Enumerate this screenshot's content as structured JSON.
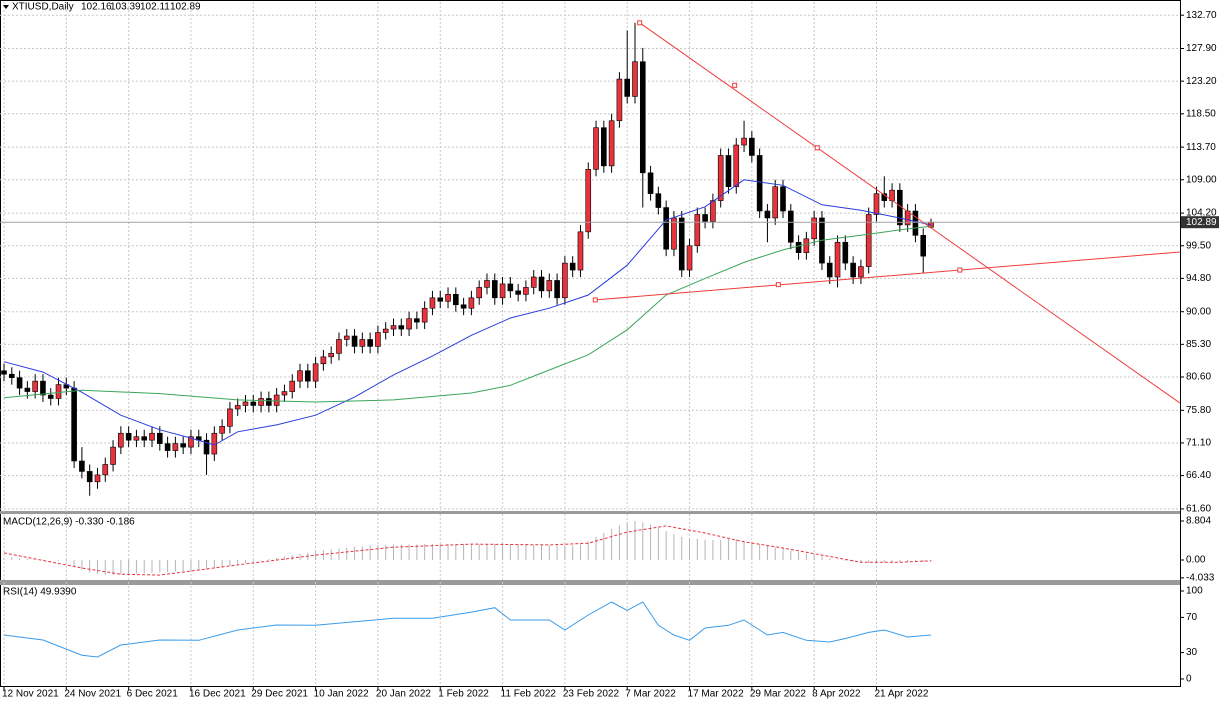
{
  "chart_data": [
    {
      "type": "candlestick",
      "title": "XTIUSD,Daily",
      "categories": [
        "12 Nov 2021",
        null,
        null,
        null,
        null,
        null,
        null,
        null,
        "24 Nov 2021",
        null,
        null,
        null,
        null,
        null,
        null,
        null,
        "6 Dec 2021",
        null,
        null,
        null,
        null,
        null,
        null,
        null,
        "16 Dec 2021",
        null,
        null,
        null,
        null,
        null,
        null,
        null,
        "29 Dec 2021",
        null,
        null,
        null,
        null,
        null,
        null,
        null,
        "10 Jan 2022",
        null,
        null,
        null,
        null,
        null,
        null,
        null,
        "20 Jan 2022",
        null,
        null,
        null,
        null,
        null,
        null,
        null,
        "1 Feb 2022",
        null,
        null,
        null,
        null,
        null,
        null,
        null,
        "11 Feb 2022",
        null,
        null,
        null,
        null,
        null,
        null,
        null,
        "23 Feb 2022",
        null,
        null,
        null,
        null,
        null,
        null,
        null,
        "7 Mar 2022",
        null,
        null,
        null,
        null,
        null,
        null,
        null,
        "17 Mar 2022",
        null,
        null,
        null,
        null,
        null,
        null,
        null,
        "29 Mar 2022",
        null,
        null,
        null,
        null,
        null,
        null,
        null,
        "8 Apr 2022",
        null,
        null,
        null,
        null,
        null,
        null,
        null,
        "21 Apr 2022",
        null,
        null,
        null,
        null,
        null,
        null,
        null
      ],
      "open": [
        81.5,
        81.0,
        80.5,
        79.0,
        78.5,
        80.0,
        78.0,
        77.5,
        79.5,
        79.0,
        68.5,
        67.0,
        65.5,
        66.5,
        68.0,
        70.5,
        72.5,
        71.5,
        72.0,
        71.5,
        72.5,
        71.0,
        70.0,
        71.0,
        70.5,
        72.0,
        71.5,
        69.5,
        72.5,
        73.5,
        76.0,
        76.5,
        77.0,
        76.5,
        77.5,
        76.5,
        78.0,
        78.5,
        80.0,
        81.5,
        80.0,
        82.5,
        83.5,
        84.0,
        86.0,
        86.5,
        85.0,
        86.0,
        85.0,
        87.0,
        87.5,
        88.0,
        87.5,
        89.0,
        88.5,
        90.5,
        92.0,
        91.5,
        92.5,
        91.0,
        90.5,
        92.0,
        93.5,
        94.5,
        92.0,
        94.0,
        93.0,
        92.5,
        93.5,
        95.0,
        93.0,
        94.5,
        92.0,
        97.0,
        96.0,
        101.5,
        110.5,
        116.5,
        111.0,
        117.5,
        123.5,
        121.0,
        126.0,
        110.0,
        107.0,
        105.0,
        99.0,
        103.5,
        96.0,
        99.5,
        104.0,
        103.0,
        106.0,
        112.5,
        108.0,
        114.0,
        115.0,
        112.5,
        104.5,
        103.5,
        108.0,
        104.5,
        100.0,
        98.5,
        100.5,
        103.5,
        97.0,
        95.0,
        100.0,
        97.0,
        95.0,
        96.5,
        104.0,
        107.0,
        106.0,
        107.5,
        102.5,
        104.5,
        101.0,
        102.16
      ],
      "high": [
        82.5,
        82.0,
        81.5,
        80.0,
        81.0,
        81.0,
        79.0,
        80.5,
        80.5,
        80.0,
        70.5,
        68.0,
        67.5,
        69.0,
        71.5,
        73.5,
        73.5,
        73.0,
        73.0,
        73.5,
        73.5,
        72.0,
        72.0,
        72.0,
        73.0,
        73.0,
        72.5,
        73.5,
        74.5,
        77.0,
        77.5,
        78.0,
        78.0,
        78.5,
        78.5,
        79.0,
        79.5,
        81.0,
        82.5,
        82.5,
        83.5,
        84.5,
        85.0,
        87.0,
        87.5,
        87.5,
        87.0,
        87.0,
        88.0,
        88.5,
        89.0,
        89.0,
        90.0,
        90.0,
        91.5,
        93.0,
        93.0,
        93.5,
        93.5,
        92.0,
        93.0,
        94.5,
        95.5,
        95.5,
        95.0,
        95.0,
        94.0,
        94.5,
        96.0,
        96.0,
        95.5,
        95.5,
        98.0,
        98.0,
        102.5,
        111.5,
        117.5,
        117.5,
        118.5,
        124.5,
        130.5,
        131.6,
        128.0,
        111.0,
        108.0,
        106.0,
        104.5,
        104.5,
        100.5,
        105.0,
        105.0,
        107.0,
        113.5,
        113.5,
        115.0,
        117.5,
        116.0,
        113.5,
        105.5,
        109.0,
        109.0,
        105.5,
        101.0,
        101.5,
        104.5,
        104.5,
        98.0,
        101.0,
        101.0,
        98.0,
        97.5,
        105.0,
        108.0,
        109.5,
        108.5,
        108.5,
        105.5,
        105.5,
        102.0,
        103.39
      ],
      "low": [
        80.0,
        79.5,
        78.0,
        77.5,
        77.5,
        77.0,
        76.5,
        76.5,
        78.0,
        67.5,
        66.0,
        63.5,
        64.5,
        65.5,
        67.0,
        69.5,
        70.5,
        70.5,
        70.5,
        70.5,
        70.0,
        69.0,
        69.0,
        69.5,
        69.5,
        70.5,
        66.5,
        68.5,
        71.5,
        72.5,
        75.0,
        75.5,
        75.5,
        75.5,
        75.5,
        75.5,
        77.0,
        77.5,
        79.0,
        79.0,
        79.0,
        81.5,
        82.5,
        83.0,
        85.0,
        84.0,
        84.0,
        84.0,
        84.0,
        86.0,
        86.5,
        86.5,
        86.5,
        87.5,
        87.5,
        89.5,
        90.5,
        90.5,
        90.0,
        89.5,
        89.5,
        91.0,
        92.5,
        91.0,
        91.0,
        92.0,
        91.5,
        91.5,
        92.5,
        92.0,
        92.0,
        91.0,
        91.0,
        95.0,
        95.0,
        100.5,
        109.5,
        110.0,
        110.0,
        116.5,
        120.0,
        120.0,
        105.0,
        106.0,
        104.0,
        98.0,
        98.0,
        95.0,
        95.0,
        98.5,
        102.0,
        102.0,
        105.0,
        107.0,
        107.0,
        113.0,
        111.5,
        103.5,
        100.0,
        102.5,
        103.5,
        99.0,
        97.5,
        97.5,
        99.5,
        96.0,
        94.0,
        93.5,
        96.0,
        94.0,
        94.0,
        95.5,
        103.0,
        105.0,
        105.0,
        101.5,
        101.5,
        100.0,
        95.5,
        102.11
      ],
      "close": [
        81.0,
        80.5,
        79.0,
        78.5,
        80.0,
        78.0,
        77.5,
        79.5,
        79.0,
        68.5,
        67.0,
        65.5,
        66.5,
        68.0,
        70.5,
        72.5,
        71.5,
        72.0,
        71.5,
        72.5,
        71.0,
        70.0,
        71.0,
        70.5,
        72.0,
        71.5,
        69.5,
        72.5,
        73.5,
        76.0,
        76.5,
        77.0,
        76.5,
        77.5,
        76.5,
        78.0,
        78.5,
        80.0,
        81.5,
        80.0,
        82.5,
        83.5,
        84.0,
        86.0,
        86.5,
        85.0,
        86.0,
        85.0,
        87.0,
        87.5,
        88.0,
        87.5,
        89.0,
        88.5,
        90.5,
        92.0,
        91.5,
        92.5,
        91.0,
        90.5,
        92.0,
        93.5,
        94.5,
        92.0,
        94.0,
        93.0,
        92.5,
        93.5,
        95.0,
        93.0,
        94.5,
        92.0,
        97.0,
        96.0,
        101.5,
        110.5,
        116.5,
        111.0,
        117.5,
        123.5,
        121.0,
        126.0,
        110.0,
        107.0,
        105.0,
        99.0,
        103.5,
        96.0,
        99.5,
        104.0,
        103.0,
        106.0,
        112.5,
        108.0,
        114.0,
        115.0,
        112.5,
        104.5,
        103.5,
        108.0,
        104.5,
        100.0,
        98.5,
        100.5,
        103.5,
        97.0,
        95.0,
        100.0,
        97.0,
        95.0,
        96.5,
        104.0,
        107.0,
        106.0,
        107.5,
        102.5,
        104.5,
        101.0,
        98.0,
        102.89
      ],
      "up_color": "#e8323c",
      "down_color": "#000000",
      "ylim": [
        61.3,
        134.6
      ],
      "yticks": [
        {
          "value": 132.7,
          "label": "132.70"
        },
        {
          "value": 127.9,
          "label": "127.90"
        },
        {
          "value": 123.2,
          "label": "123.20"
        },
        {
          "value": 118.5,
          "label": "118.50"
        },
        {
          "value": 113.7,
          "label": "113.70"
        },
        {
          "value": 109.0,
          "label": "109.00"
        },
        {
          "value": 104.2,
          "label": "104.20"
        },
        {
          "value": 99.5,
          "label": "99.50"
        },
        {
          "value": 94.8,
          "label": "94.80"
        },
        {
          "value": 90.0,
          "label": "90.00"
        },
        {
          "value": 85.3,
          "label": "85.30"
        },
        {
          "value": 80.6,
          "label": "80.60"
        },
        {
          "value": 75.8,
          "label": "75.80"
        },
        {
          "value": 71.1,
          "label": "71.10"
        },
        {
          "value": 66.4,
          "label": "66.40"
        },
        {
          "value": 61.6,
          "label": "61.60"
        }
      ],
      "grid": true,
      "moving_averages": [
        {
          "color": "#2b3be0",
          "x": [
            0,
            5,
            10,
            15,
            20,
            24,
            27,
            30,
            35,
            40,
            45,
            50,
            55,
            60,
            65,
            70,
            75,
            80,
            85,
            90,
            95,
            100,
            105,
            110,
            115,
            119
          ],
          "values": [
            82.8,
            81.3,
            78.4,
            75.1,
            73.0,
            71.8,
            70.8,
            72.7,
            73.7,
            75.1,
            77.7,
            80.9,
            83.6,
            86.6,
            89.1,
            90.5,
            92.4,
            96.7,
            103.2,
            105.1,
            109.0,
            108.2,
            105.4,
            104.6,
            103.5,
            102.5
          ]
        },
        {
          "color": "#3aa55a",
          "x": [
            0,
            10,
            20,
            30,
            40,
            50,
            60,
            65,
            70,
            75,
            80,
            85,
            90,
            95,
            100,
            105,
            110,
            115,
            119
          ],
          "values": [
            77.6,
            78.7,
            78.2,
            77.3,
            77.0,
            77.3,
            78.3,
            79.4,
            81.6,
            83.8,
            87.4,
            92.4,
            94.8,
            97.1,
            98.9,
            100.3,
            101.0,
            101.8,
            102.3
          ]
        }
      ],
      "trendlines": [
        {
          "color": "#f03c3c",
          "points": [
            {
              "x": 81.6,
              "y": 131.6
            },
            {
              "x": 93.8,
              "y": 122.6
            },
            {
              "x": 104.4,
              "y": 113.6
            }
          ]
        },
        {
          "color": "#f03c3c",
          "points": [
            {
              "x": 75.9,
              "y": 91.7
            },
            {
              "x": 99.4,
              "y": 93.9
            },
            {
              "x": 122.7,
              "y": 96.0
            }
          ]
        }
      ]
    },
    {
      "type": "macd",
      "title": "MACD(12,26,9) -0.330 -0.186",
      "histogram": [
        0.5,
        0.6,
        0.4,
        0.3,
        0.2,
        0.1,
        -0.1,
        -0.2,
        -0.3,
        -1.5,
        -2.2,
        -2.8,
        -3.2,
        -3.4,
        -3.4,
        -3.3,
        -3.2,
        -3.1,
        -3.0,
        -2.9,
        -2.8,
        -2.7,
        -2.6,
        -2.5,
        -2.4,
        -2.3,
        -2.1,
        -1.9,
        -1.6,
        -1.3,
        -1.0,
        -0.7,
        -0.4,
        -0.1,
        0.2,
        0.5,
        0.8,
        1.1,
        1.4,
        1.7,
        2.0,
        2.2,
        2.4,
        2.6,
        2.8,
        3.0,
        3.1,
        3.2,
        3.3,
        3.4,
        3.5,
        3.5,
        3.5,
        3.5,
        3.6,
        3.6,
        3.6,
        3.6,
        3.6,
        3.6,
        3.6,
        3.6,
        3.6,
        3.6,
        3.5,
        3.5,
        3.5,
        3.4,
        3.4,
        3.4,
        3.3,
        3.3,
        3.3,
        3.3,
        3.6,
        4.2,
        5.2,
        6.1,
        7.0,
        7.8,
        8.4,
        8.8,
        8.5,
        8.0,
        7.3,
        6.5,
        5.8,
        5.2,
        4.9,
        4.8,
        4.6,
        4.5,
        4.6,
        4.7,
        4.6,
        4.4,
        4.0,
        3.5,
        3.2,
        2.9,
        2.6,
        2.2,
        1.8,
        1.4,
        1.1,
        0.8,
        0.4,
        0.1,
        -0.2,
        -0.4,
        -0.6,
        -0.7,
        -0.6,
        -0.5,
        -0.4,
        -0.4,
        -0.4,
        -0.4,
        -0.4,
        -0.33
      ],
      "histogram_color": "#b4b4b4",
      "signal": {
        "color": "#e8323c",
        "x": [
          0,
          10,
          15,
          20,
          30,
          40,
          50,
          60,
          70,
          75,
          80,
          85,
          90,
          95,
          100,
          105,
          110,
          115,
          119
        ],
        "values": [
          1.6,
          -1.8,
          -3.2,
          -3.4,
          -1.1,
          1.1,
          2.9,
          3.6,
          3.4,
          3.8,
          6.3,
          7.7,
          6.1,
          4.1,
          2.7,
          1.1,
          -0.5,
          -0.5,
          -0.186
        ]
      },
      "ylim": [
        -4.51,
        10.38
      ],
      "yticks": [
        8.804,
        {
          "value": 0,
          "label": "0.00"
        },
        -4.033
      ]
    },
    {
      "type": "line",
      "title": "RSI(14) 49.9390",
      "color": "#3c9be8",
      "x": [
        0,
        5,
        10,
        12,
        15,
        20,
        25,
        30,
        35,
        40,
        45,
        50,
        55,
        60,
        63,
        65,
        70,
        72,
        75,
        78,
        80,
        82,
        84,
        86,
        88,
        90,
        93,
        95,
        98,
        100,
        103,
        106,
        108,
        111,
        113,
        116,
        119
      ],
      "values": [
        50,
        44.3,
        27,
        25,
        38.6,
        44.3,
        44,
        55.7,
        61.4,
        61,
        65,
        69,
        69,
        76,
        81,
        67,
        67,
        55.7,
        72.7,
        87.5,
        78,
        87.5,
        61,
        50,
        44,
        58,
        61,
        67,
        50,
        53,
        44,
        42,
        46,
        53,
        55.7,
        47.7,
        49.939
      ],
      "ylim": [
        -8,
        105.7
      ],
      "yticks": [
        100,
        70,
        30,
        0
      ]
    }
  ]
}
